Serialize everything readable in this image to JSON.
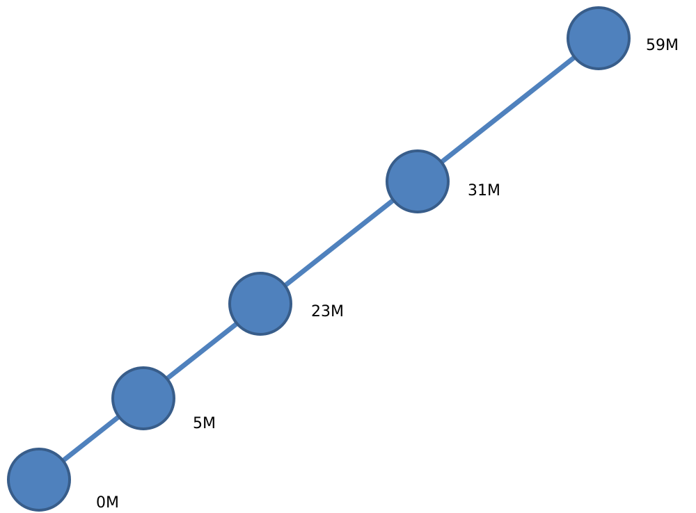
{
  "colors": {
    "connector": "#4F81BD",
    "node_fill": "#4F81BD",
    "node_stroke": "#385D8A",
    "label": "#000000"
  },
  "nodes": [
    {
      "label": "0M"
    },
    {
      "label": "5M"
    },
    {
      "label": "23M"
    },
    {
      "label": "31M"
    },
    {
      "label": "59M"
    }
  ]
}
